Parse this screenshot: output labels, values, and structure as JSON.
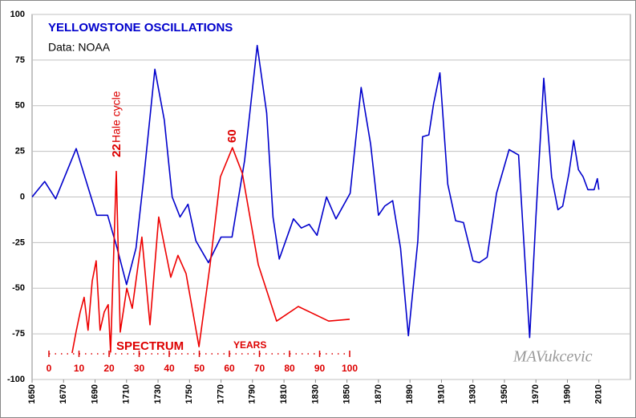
{
  "chart_data": {
    "type": "line",
    "title": "YELLOWSTONE  OSCILLATIONS",
    "subtitle": "Data: NOAA",
    "annotations": [
      "22",
      "Hale cycle",
      "60",
      "SPECTRUM",
      "YEARS",
      "MAVukcevic"
    ],
    "xlim": [
      1650,
      2030
    ],
    "xticks": [
      1650,
      1670,
      1690,
      1710,
      1730,
      1750,
      1770,
      1790,
      1810,
      1830,
      1850,
      1870,
      1890,
      1910,
      1930,
      1950,
      1970,
      1990,
      2010
    ],
    "ylim": [
      -100,
      100
    ],
    "yticks": [
      -100,
      -75,
      -50,
      -25,
      0,
      25,
      50,
      75,
      100
    ],
    "x2lim": [
      0,
      100
    ],
    "x2ticks": [
      0,
      10,
      20,
      30,
      40,
      50,
      60,
      70,
      80,
      90,
      100
    ],
    "grid": true,
    "series": [
      {
        "color": "#0000cc",
        "x": [
          1650,
          1658,
          1665,
          1678,
          1686,
          1691,
          1698,
          1704,
          1710,
          1716,
          1721,
          1728,
          1734,
          1739,
          1744,
          1749,
          1754,
          1762,
          1770,
          1777,
          1785,
          1793,
          1799,
          1803,
          1807,
          1816,
          1821,
          1826,
          1831,
          1837,
          1843,
          1852,
          1859,
          1865,
          1870,
          1874,
          1879,
          1884,
          1889,
          1895,
          1898,
          1902,
          1905,
          1909,
          1914,
          1919,
          1924,
          1930,
          1934,
          1939,
          1945,
          1953,
          1959,
          1962,
          1966,
          1970,
          1975,
          1980,
          1984,
          1987,
          1991,
          1994,
          1997,
          2000,
          2003,
          2007,
          2009,
          2010
        ],
        "values": [
          0,
          8.5,
          -1,
          26.5,
          4,
          -10,
          -10,
          -28,
          -48,
          -28,
          11,
          70,
          42,
          0,
          -11,
          -4,
          -24,
          -36,
          -22,
          -22,
          20,
          83,
          46,
          -11,
          -34,
          -12,
          -17,
          -15,
          -21,
          0,
          -12,
          2,
          60,
          29,
          -10,
          -5,
          -2,
          -28,
          -76,
          -24,
          33,
          34,
          51,
          68,
          7,
          -13,
          -14,
          -35,
          -36,
          -33,
          2,
          26,
          23,
          -20,
          -77,
          -11,
          65,
          11,
          -7,
          -5,
          13,
          31,
          15,
          11,
          4,
          4,
          10,
          4
        ]
      },
      {
        "color": "#ee0000",
        "axis": "x2",
        "x": [
          7.7,
          9,
          10.4,
          11.7,
          13,
          14.4,
          15.7,
          17,
          18.4,
          19.7,
          20.5,
          22.4,
          23.7,
          25.9,
          27.7,
          30.9,
          33.6,
          36.5,
          40.5,
          42.9,
          45.6,
          49.9,
          53.6,
          57,
          61,
          64.3,
          69.6,
          75.7,
          82.9,
          93,
          100
        ],
        "values": [
          -85.5,
          -74,
          -63,
          -55,
          -73,
          -46,
          -35,
          -73,
          -63,
          -59,
          -85,
          14,
          -74,
          -50,
          -61,
          -22,
          -70,
          -11,
          -44,
          -32,
          -42,
          -82,
          -37,
          11,
          27,
          13,
          -37,
          -68,
          -60,
          -68,
          -67
        ]
      }
    ]
  }
}
